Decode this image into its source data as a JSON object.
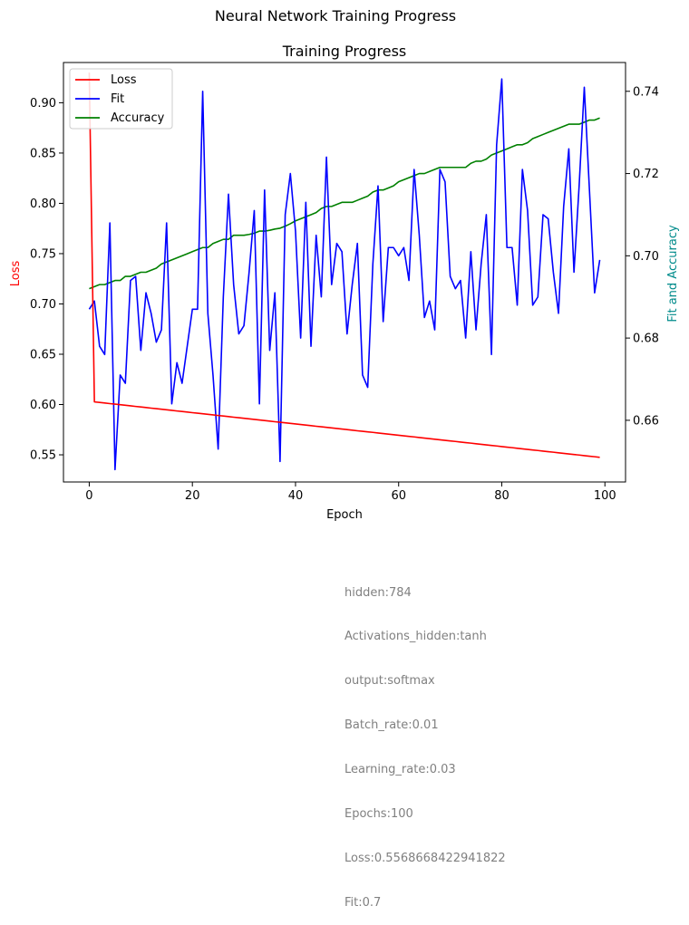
{
  "chart_data": {
    "type": "line",
    "suptitle": "Neural Network Training Progress",
    "title": "Training Progress",
    "xlabel": "Epoch",
    "ylabel_left": "Loss",
    "ylabel_right": "Fit and Accuracy",
    "xlim": [
      -5,
      104
    ],
    "ylim_left": [
      0.523,
      0.94
    ],
    "ylim_right": [
      0.645,
      0.747
    ],
    "x_ticks": [
      0,
      20,
      40,
      60,
      80,
      100
    ],
    "y_ticks_left": [
      0.55,
      0.6,
      0.65,
      0.7,
      0.75,
      0.8,
      0.85,
      0.9
    ],
    "y_ticks_right": [
      0.66,
      0.68,
      0.7,
      0.72,
      0.74
    ],
    "legend_position": "top-left",
    "grid": false,
    "colors": {
      "loss": "#ff0000",
      "fit": "#0000ff",
      "accuracy": "#008000",
      "right_label": "#008b8b",
      "notes": "#808080"
    },
    "series": [
      {
        "name": "Loss",
        "axis": "left",
        "color": "#ff0000",
        "values": [
          0.93,
          0.6026,
          0.6021,
          0.6015,
          0.6009,
          0.6004,
          0.5998,
          0.5993,
          0.5987,
          0.5981,
          0.5976,
          0.597,
          0.5964,
          0.5959,
          0.5953,
          0.5948,
          0.5942,
          0.5936,
          0.5931,
          0.5925,
          0.5919,
          0.5914,
          0.5908,
          0.5903,
          0.5897,
          0.5891,
          0.5886,
          0.588,
          0.5874,
          0.5869,
          0.5863,
          0.5858,
          0.5852,
          0.5846,
          0.5841,
          0.5835,
          0.5829,
          0.5824,
          0.5818,
          0.5813,
          0.5807,
          0.5801,
          0.5796,
          0.579,
          0.5784,
          0.5779,
          0.5773,
          0.5768,
          0.5762,
          0.5756,
          0.5751,
          0.5745,
          0.5739,
          0.5734,
          0.5728,
          0.5723,
          0.5717,
          0.5711,
          0.5706,
          0.57,
          0.5694,
          0.5689,
          0.5683,
          0.5678,
          0.5672,
          0.5666,
          0.5661,
          0.5655,
          0.5649,
          0.5644,
          0.5638,
          0.5633,
          0.5627,
          0.5621,
          0.5616,
          0.561,
          0.5604,
          0.5599,
          0.5593,
          0.5588,
          0.5582,
          0.5576,
          0.5571,
          0.5565,
          0.5559,
          0.5554,
          0.5548,
          0.5543,
          0.5537,
          0.5531,
          0.5526,
          0.552,
          0.5514,
          0.5509,
          0.5503,
          0.5498,
          0.5492,
          0.5486,
          0.5481,
          0.5475
        ]
      },
      {
        "name": "Fit",
        "axis": "right",
        "color": "#0000ff",
        "values": [
          0.687,
          0.689,
          0.678,
          0.676,
          0.708,
          0.648,
          0.671,
          0.669,
          0.694,
          0.695,
          0.677,
          0.691,
          0.686,
          0.679,
          0.682,
          0.708,
          0.664,
          0.674,
          0.669,
          0.678,
          0.687,
          0.687,
          0.74,
          0.686,
          0.671,
          0.653,
          0.69,
          0.715,
          0.693,
          0.681,
          0.683,
          0.696,
          0.711,
          0.664,
          0.716,
          0.677,
          0.691,
          0.65,
          0.71,
          0.72,
          0.706,
          0.68,
          0.713,
          0.678,
          0.705,
          0.69,
          0.724,
          0.693,
          0.703,
          0.701,
          0.681,
          0.693,
          0.703,
          0.671,
          0.668,
          0.698,
          0.717,
          0.684,
          0.702,
          0.702,
          0.7,
          0.702,
          0.694,
          0.721,
          0.705,
          0.685,
          0.689,
          0.682,
          0.721,
          0.718,
          0.695,
          0.692,
          0.694,
          0.68,
          0.701,
          0.682,
          0.698,
          0.71,
          0.676,
          0.727,
          0.743,
          0.702,
          0.702,
          0.688,
          0.721,
          0.711,
          0.688,
          0.69,
          0.71,
          0.709,
          0.696,
          0.686,
          0.712,
          0.726,
          0.696,
          0.717,
          0.741,
          0.716,
          0.691,
          0.699
        ]
      },
      {
        "name": "Accuracy",
        "axis": "right",
        "color": "#008000",
        "values": [
          0.692,
          0.6925,
          0.693,
          0.693,
          0.6935,
          0.694,
          0.694,
          0.695,
          0.695,
          0.6955,
          0.696,
          0.696,
          0.6965,
          0.697,
          0.698,
          0.6985,
          0.699,
          0.6995,
          0.7,
          0.7005,
          0.701,
          0.7015,
          0.702,
          0.702,
          0.703,
          0.7035,
          0.704,
          0.704,
          0.705,
          0.705,
          0.705,
          0.7052,
          0.7055,
          0.706,
          0.706,
          0.7062,
          0.7065,
          0.7067,
          0.7072,
          0.7078,
          0.7085,
          0.709,
          0.7095,
          0.71,
          0.7105,
          0.7115,
          0.712,
          0.712,
          0.7125,
          0.713,
          0.713,
          0.713,
          0.7135,
          0.714,
          0.7145,
          0.7155,
          0.716,
          0.716,
          0.7165,
          0.717,
          0.718,
          0.7185,
          0.719,
          0.7195,
          0.72,
          0.72,
          0.7205,
          0.721,
          0.7215,
          0.7215,
          0.7215,
          0.7215,
          0.7215,
          0.7215,
          0.7225,
          0.723,
          0.723,
          0.7235,
          0.7245,
          0.725,
          0.7255,
          0.726,
          0.7265,
          0.727,
          0.727,
          0.7275,
          0.7285,
          0.729,
          0.7295,
          0.73,
          0.7305,
          0.731,
          0.7315,
          0.732,
          0.732,
          0.732,
          0.7325,
          0.733,
          0.733,
          0.7335
        ]
      }
    ]
  },
  "notes": [
    "hidden:784",
    "Activations_hidden:tanh",
    "output:softmax",
    "Batch_rate:0.01",
    "Learning_rate:0.03",
    "Epochs:100",
    "Loss:0.5568668422941822",
    "Fit:0.7"
  ]
}
